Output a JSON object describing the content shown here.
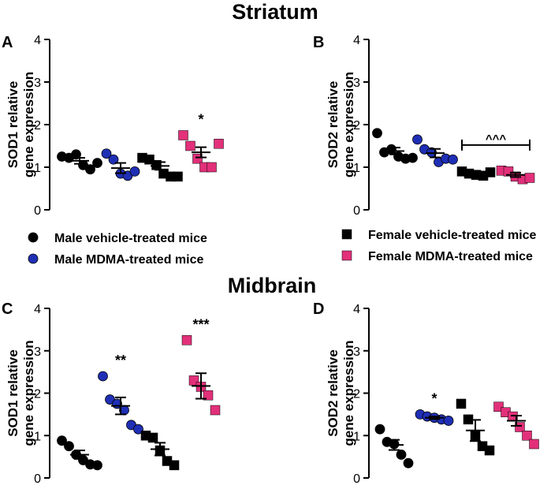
{
  "figure": {
    "section_top": "Striatum",
    "section_bottom": "Midbrain",
    "legend": [
      {
        "label": "Male vehicle-treated mice",
        "marker": "circle",
        "color": "#000000"
      },
      {
        "label": "Male MDMA-treated mice",
        "marker": "circle",
        "color": "#1f2fb5"
      },
      {
        "label": "Female vehicle-treated mice",
        "marker": "square",
        "color": "#000000"
      },
      {
        "label": "Female MDMA-treated mice",
        "marker": "square",
        "color": "#e2307a"
      }
    ]
  },
  "chart_data": [
    {
      "panel": "A",
      "type": "scatter",
      "title": "",
      "ylabel_line1": "SOD1 relative",
      "ylabel_line2": "gene expression",
      "ylim": [
        0,
        4
      ],
      "yticks": [
        0,
        1,
        2,
        3,
        4
      ],
      "groups": [
        {
          "name": "Male vehicle-treated mice",
          "marker": "circle",
          "color": "#000000",
          "mean": 1.15,
          "sem": 0.07,
          "values": [
            1.25,
            1.22,
            1.3,
            1.05,
            0.95,
            1.1
          ]
        },
        {
          "name": "Male MDMA-treated mice",
          "marker": "circle",
          "color": "#1f2fb5",
          "mean": 0.98,
          "sem": 0.12,
          "values": [
            1.32,
            1.18,
            0.85,
            0.8,
            0.9
          ]
        },
        {
          "name": "Female vehicle-treated mice",
          "marker": "square",
          "color": "#000000",
          "mean": 1.03,
          "sem": 0.09,
          "values": [
            1.22,
            1.18,
            1.05,
            0.85,
            0.78,
            0.78
          ]
        },
        {
          "name": "Female MDMA-treated mice",
          "marker": "square",
          "color": "#e2307a",
          "mean": 1.35,
          "sem": 0.12,
          "values": [
            1.75,
            1.5,
            1.2,
            1.0,
            1.0,
            1.55
          ]
        }
      ],
      "annotations": [
        {
          "group": 3,
          "text": "*"
        }
      ]
    },
    {
      "panel": "B",
      "type": "scatter",
      "title": "",
      "ylabel_line1": "SOD2 relative",
      "ylabel_line2": "gene expression",
      "ylim": [
        0,
        4
      ],
      "yticks": [
        0,
        1,
        2,
        3,
        4
      ],
      "groups": [
        {
          "name": "Male vehicle-treated mice",
          "marker": "circle",
          "color": "#000000",
          "mean": 1.38,
          "sem": 0.08,
          "values": [
            1.8,
            1.35,
            1.42,
            1.25,
            1.2,
            1.22
          ]
        },
        {
          "name": "Male MDMA-treated mice",
          "marker": "circle",
          "color": "#1f2fb5",
          "mean": 1.33,
          "sem": 0.1,
          "values": [
            1.65,
            1.42,
            1.35,
            1.12,
            1.2,
            1.18
          ]
        },
        {
          "name": "Female vehicle-treated mice",
          "marker": "square",
          "color": "#000000",
          "mean": 0.85,
          "sem": 0.04,
          "values": [
            0.9,
            0.85,
            0.82,
            0.8,
            0.88
          ]
        },
        {
          "name": "Female MDMA-treated mice",
          "marker": "square",
          "color": "#e2307a",
          "mean": 0.82,
          "sem": 0.05,
          "values": [
            0.92,
            0.9,
            0.78,
            0.72,
            0.75
          ]
        }
      ],
      "bracket": {
        "from": 2,
        "to": 3,
        "y": 1.52,
        "text": "^^^"
      }
    },
    {
      "panel": "C",
      "type": "scatter",
      "title": "",
      "ylabel_line1": "SOD1 relative",
      "ylabel_line2": "gene expression",
      "ylim": [
        0,
        4
      ],
      "yticks": [
        0,
        1,
        2,
        3,
        4
      ],
      "groups": [
        {
          "name": "Male vehicle-treated mice",
          "marker": "circle",
          "color": "#000000",
          "mean": 0.55,
          "sem": 0.1,
          "values": [
            0.88,
            0.75,
            0.55,
            0.42,
            0.32,
            0.3
          ]
        },
        {
          "name": "Male MDMA-treated mice",
          "marker": "circle",
          "color": "#1f2fb5",
          "mean": 1.7,
          "sem": 0.2,
          "values": [
            2.4,
            1.85,
            1.75,
            1.6,
            1.25,
            1.15
          ]
        },
        {
          "name": "Female vehicle-treated mice",
          "marker": "square",
          "color": "#000000",
          "mean": 0.68,
          "sem": 0.15,
          "values": [
            1.0,
            0.95,
            0.65,
            0.4,
            0.3
          ]
        },
        {
          "name": "Female MDMA-treated mice",
          "marker": "square",
          "color": "#e2307a",
          "mean": 2.17,
          "sem": 0.3,
          "values": [
            3.25,
            2.3,
            2.15,
            1.95,
            1.6
          ]
        }
      ],
      "annotations": [
        {
          "group": 1,
          "text": "**"
        },
        {
          "group": 3,
          "text": "***"
        }
      ]
    },
    {
      "panel": "D",
      "type": "scatter",
      "title": "",
      "ylabel_line1": "SOD2 relative",
      "ylabel_line2": "gene expression",
      "ylim": [
        0,
        4
      ],
      "yticks": [
        0,
        1,
        2,
        3,
        4
      ],
      "groups": [
        {
          "name": "Male vehicle-treated mice",
          "marker": "circle",
          "color": "#000000",
          "mean": 0.78,
          "sem": 0.12,
          "values": [
            1.15,
            0.85,
            0.8,
            0.55,
            0.35
          ]
        },
        {
          "name": "Male MDMA-treated mice",
          "marker": "circle",
          "color": "#1f2fb5",
          "mean": 1.42,
          "sem": 0.03,
          "values": [
            1.5,
            1.45,
            1.42,
            1.38,
            1.35
          ]
        },
        {
          "name": "Female vehicle-treated mice",
          "marker": "square",
          "color": "#000000",
          "mean": 1.12,
          "sem": 0.25,
          "values": [
            1.75,
            1.38,
            1.0,
            0.75,
            0.65
          ]
        },
        {
          "name": "Female MDMA-treated mice",
          "marker": "square",
          "color": "#e2307a",
          "mean": 1.35,
          "sem": 0.12,
          "values": [
            1.68,
            1.55,
            1.45,
            1.2,
            1.0,
            0.8
          ]
        }
      ],
      "annotations": [
        {
          "group": 1,
          "text": "*"
        }
      ]
    }
  ]
}
